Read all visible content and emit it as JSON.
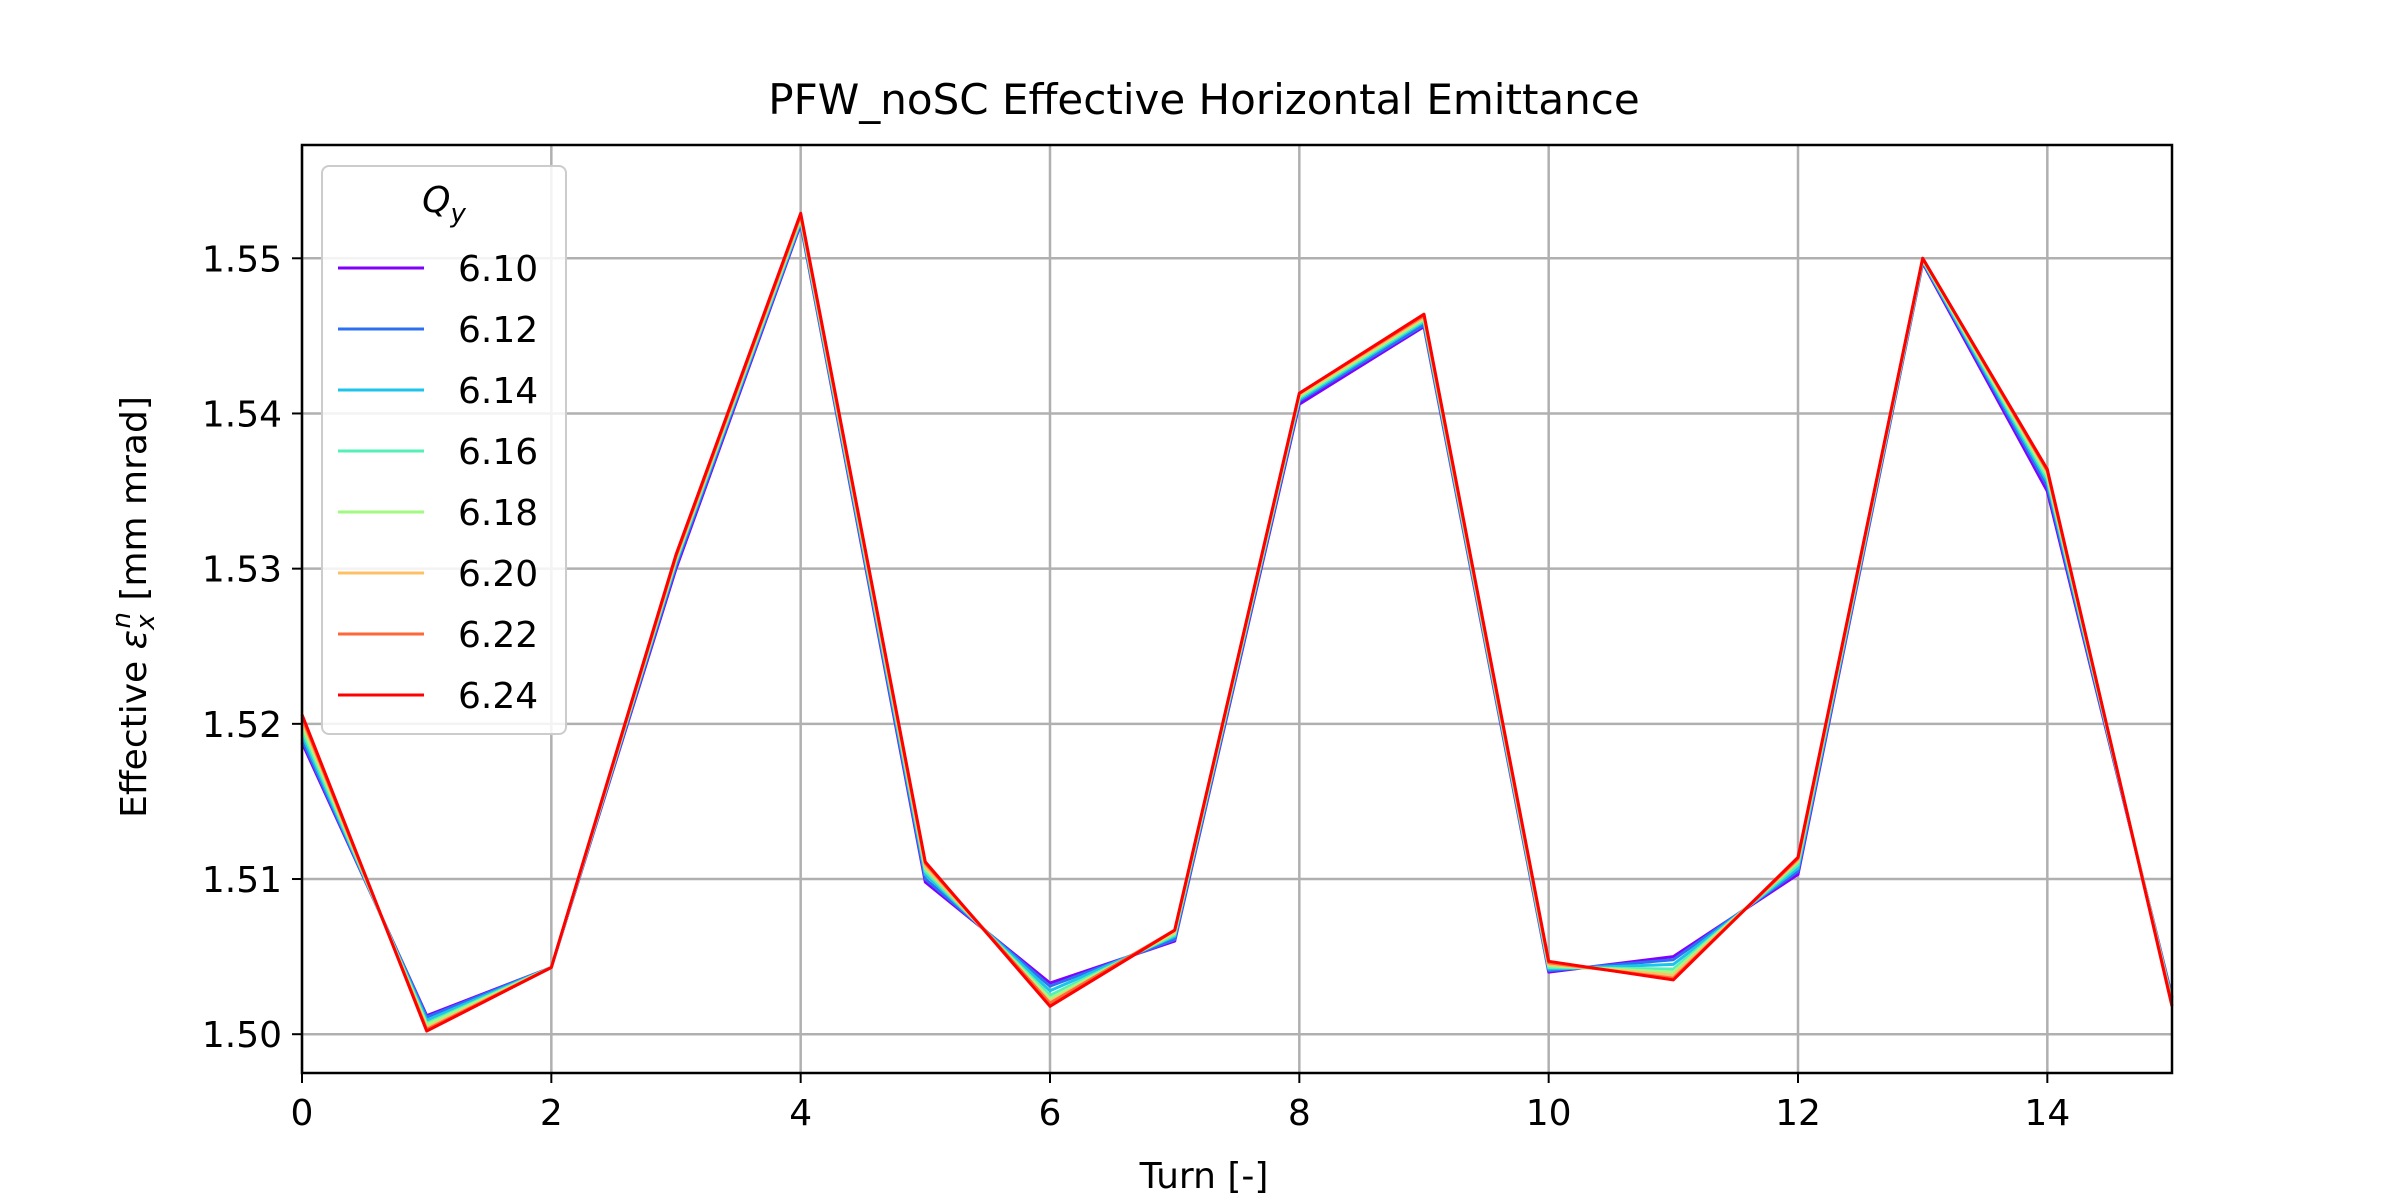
{
  "chart_data": {
    "type": "line",
    "title": "PFW_noSC Effective Horizontal Emittance",
    "xlabel": "Turn [-]",
    "ylabel_parts": {
      "prefix": "Effective ",
      "symbol": "ε",
      "sub": "x",
      "sup": "n",
      "suffix": " [mm mrad]"
    },
    "xlim": [
      0,
      15
    ],
    "ylim": [
      1.4975,
      1.5573
    ],
    "xticks": [
      0,
      2,
      4,
      6,
      8,
      10,
      12,
      14
    ],
    "xtick_labels": [
      "0",
      "2",
      "4",
      "6",
      "8",
      "10",
      "12",
      "14"
    ],
    "yticks": [
      1.5,
      1.51,
      1.52,
      1.53,
      1.54,
      1.55
    ],
    "ytick_labels": [
      "1.50",
      "1.51",
      "1.52",
      "1.53",
      "1.54",
      "1.55"
    ],
    "grid": true,
    "legend": {
      "title_main": "Q",
      "title_sub": "y",
      "position": "upper-left"
    },
    "x": [
      0,
      1,
      2,
      3,
      4,
      5,
      6,
      7,
      8,
      9,
      10,
      11,
      12,
      13,
      14,
      15
    ],
    "series": [
      {
        "name": "6.10",
        "color": "#8000ff",
        "values": [
          1.5188,
          1.5012,
          1.5043,
          1.53,
          1.5522,
          1.5098,
          1.5033,
          1.506,
          1.5406,
          1.5456,
          1.504,
          1.505,
          1.5103,
          1.5497,
          1.535,
          1.5024
        ]
      },
      {
        "name": "6.12",
        "color": "#2c6ff0",
        "values": [
          1.519,
          1.5011,
          1.5043,
          1.5302,
          1.5523,
          1.51,
          1.5031,
          1.5061,
          1.5408,
          1.5457,
          1.5041,
          1.5048,
          1.5105,
          1.5498,
          1.5353,
          1.5023
        ]
      },
      {
        "name": "6.14",
        "color": "#1bc4e8",
        "values": [
          1.5193,
          1.5009,
          1.5043,
          1.5304,
          1.5524,
          1.5103,
          1.5028,
          1.5063,
          1.5409,
          1.5459,
          1.5042,
          1.5045,
          1.5107,
          1.5498,
          1.5356,
          1.5022
        ]
      },
      {
        "name": "6.16",
        "color": "#55f0b8",
        "values": [
          1.5196,
          1.5007,
          1.5043,
          1.5305,
          1.5525,
          1.5105,
          1.5025,
          1.5064,
          1.541,
          1.546,
          1.5043,
          1.5042,
          1.5109,
          1.5499,
          1.5358,
          1.5021
        ]
      },
      {
        "name": "6.18",
        "color": "#a0fa82",
        "values": [
          1.5199,
          1.5006,
          1.5043,
          1.5306,
          1.5526,
          1.5107,
          1.5023,
          1.5065,
          1.5411,
          1.5461,
          1.5044,
          1.504,
          1.5111,
          1.5499,
          1.536,
          1.502
        ]
      },
      {
        "name": "6.20",
        "color": "#ffc065",
        "values": [
          1.5202,
          1.5004,
          1.5043,
          1.5307,
          1.5527,
          1.5108,
          1.5021,
          1.5066,
          1.5412,
          1.5462,
          1.5045,
          1.5038,
          1.5112,
          1.55,
          1.5362,
          1.502
        ]
      },
      {
        "name": "6.22",
        "color": "#ff6638",
        "values": [
          1.5204,
          1.5003,
          1.5043,
          1.5308,
          1.5528,
          1.511,
          1.502,
          1.5067,
          1.5413,
          1.5463,
          1.5046,
          1.5036,
          1.5113,
          1.55,
          1.5363,
          1.5019
        ]
      },
      {
        "name": "6.24",
        "color": "#ff0000",
        "values": [
          1.5206,
          1.5002,
          1.5043,
          1.5309,
          1.5529,
          1.5111,
          1.5018,
          1.5067,
          1.5413,
          1.5464,
          1.5047,
          1.5035,
          1.5114,
          1.55,
          1.5364,
          1.5018
        ]
      }
    ]
  }
}
